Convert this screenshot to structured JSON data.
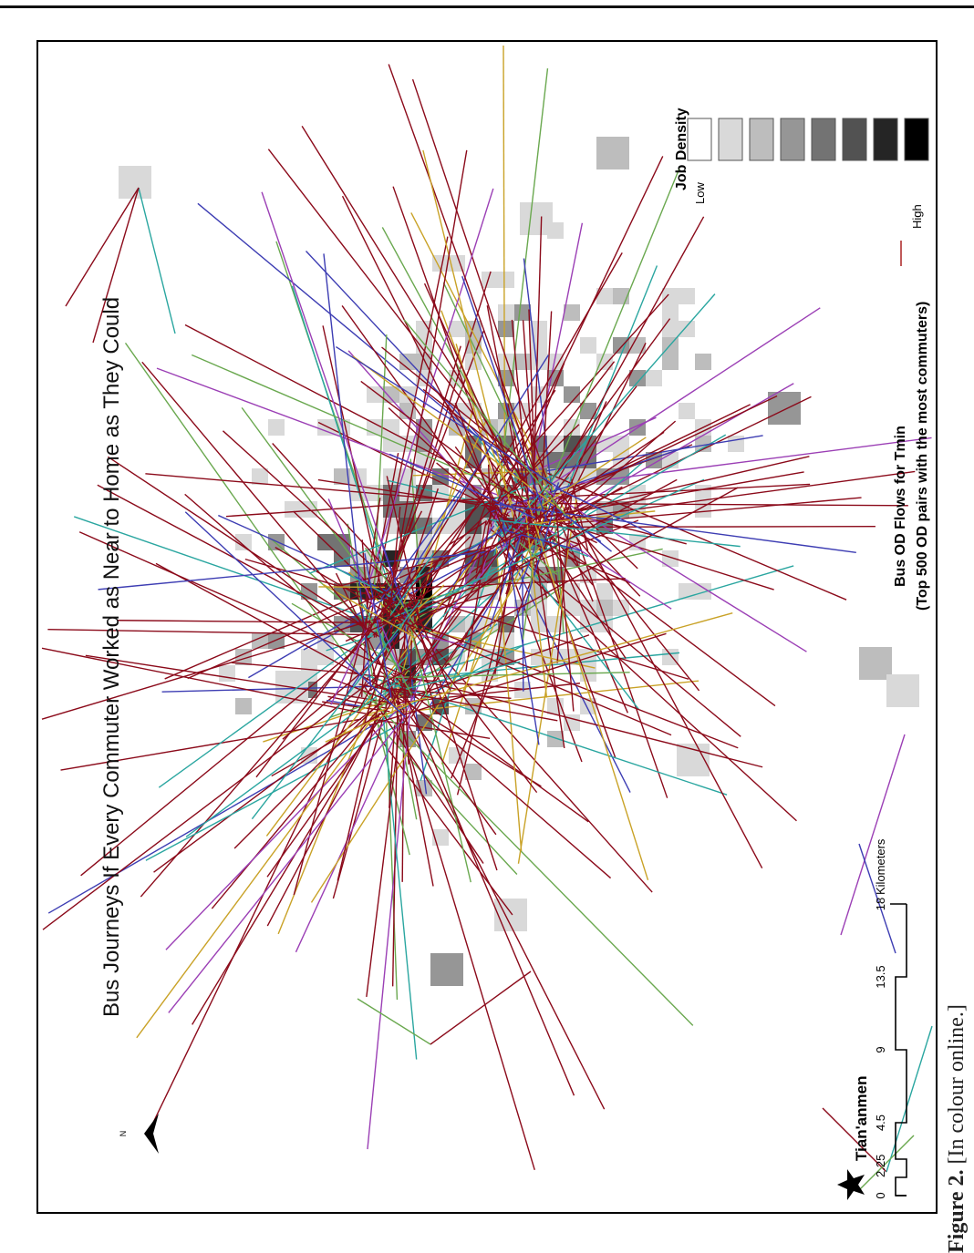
{
  "map": {
    "title": "Bus Journeys If Every Commuter Worked as Near to Home as They Could",
    "north_label": "N",
    "landmark": "Tian'anmen",
    "legend": {
      "density_title": "Job Density",
      "density_low": "Low",
      "density_high": "High",
      "density_colors": [
        "#ffffff",
        "#d9d9d9",
        "#bdbdbd",
        "#969696",
        "#737373",
        "#525252",
        "#252525",
        "#000000"
      ],
      "flow_title": "Bus OD Flows for Tmin",
      "flow_subtitle": "(Top 500 OD pairs with the most commuters)",
      "flow_color": "#8b0a1a"
    },
    "scale_bar": {
      "labels": [
        "0",
        "2.25",
        "4.5",
        "9",
        "13.5",
        "18"
      ],
      "unit": "Kilometers"
    }
  },
  "caption": {
    "label": "Figure 2.",
    "text": "[In colour online.]"
  }
}
